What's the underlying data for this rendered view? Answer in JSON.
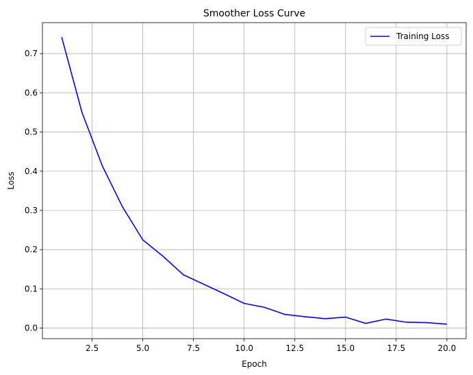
{
  "chart_data": {
    "type": "line",
    "title": "Smoother Loss Curve",
    "xlabel": "Epoch",
    "ylabel": "Loss",
    "xlim": [
      0.05,
      20.95
    ],
    "ylim": [
      -0.027,
      0.779
    ],
    "xticks": [
      2.5,
      5.0,
      7.5,
      10.0,
      12.5,
      15.0,
      17.5,
      20.0
    ],
    "xtick_labels": [
      "2.5",
      "5.0",
      "7.5",
      "10.0",
      "12.5",
      "15.0",
      "17.5",
      "20.0"
    ],
    "yticks": [
      0.0,
      0.1,
      0.2,
      0.3,
      0.4,
      0.5,
      0.6,
      0.7
    ],
    "ytick_labels": [
      "0.0",
      "0.1",
      "0.2",
      "0.3",
      "0.4",
      "0.5",
      "0.6",
      "0.7"
    ],
    "grid": true,
    "legend_position": "top-right",
    "series": [
      {
        "name": "Training Loss",
        "color": "#0000ff",
        "x": [
          1,
          2,
          3,
          4,
          5,
          6,
          7,
          8,
          9,
          10,
          11,
          12,
          13,
          14,
          15,
          16,
          17,
          18,
          19,
          20
        ],
        "values": [
          0.742,
          0.55,
          0.414,
          0.309,
          0.225,
          0.183,
          0.136,
          0.112,
          0.088,
          0.063,
          0.053,
          0.035,
          0.029,
          0.024,
          0.028,
          0.012,
          0.023,
          0.015,
          0.014,
          0.01
        ]
      }
    ]
  }
}
